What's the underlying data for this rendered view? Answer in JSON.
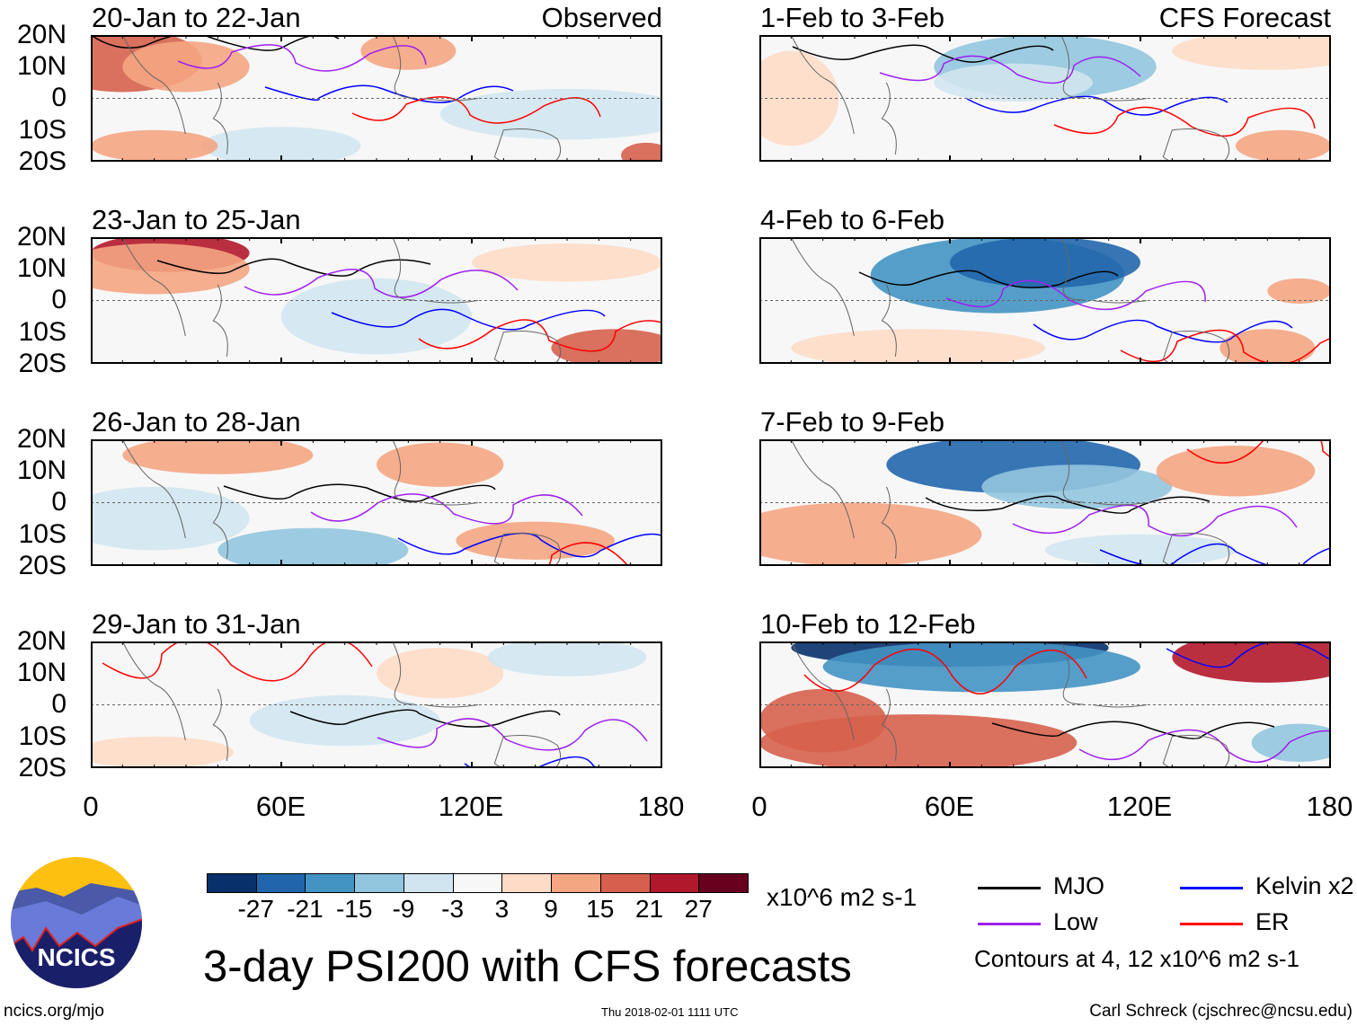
{
  "panels": [
    {
      "title": "20-Jan to 22-Jan",
      "tag": "Observed"
    },
    {
      "title": "1-Feb to 3-Feb",
      "tag": "CFS Forecast"
    },
    {
      "title": "23-Jan to 25-Jan",
      "tag": ""
    },
    {
      "title": "4-Feb to 6-Feb",
      "tag": ""
    },
    {
      "title": "26-Jan to 28-Jan",
      "tag": ""
    },
    {
      "title": "7-Feb to 9-Feb",
      "tag": ""
    },
    {
      "title": "29-Jan to 31-Jan",
      "tag": ""
    },
    {
      "title": "10-Feb to 12-Feb",
      "tag": ""
    }
  ],
  "lat_ticks": [
    "20N",
    "10N",
    "0",
    "10S",
    "20S"
  ],
  "lon_ticks": [
    "0",
    "60E",
    "120E",
    "180"
  ],
  "colorbar": {
    "colors": [
      "#08306b",
      "#2166ac",
      "#4393c3",
      "#92c5de",
      "#d1e5f0",
      "#f7f7f7",
      "#fddbc7",
      "#f4a582",
      "#d6604d",
      "#b2182b",
      "#67001f"
    ],
    "labels": [
      "-27",
      "-21",
      "-15",
      "-9",
      "-3",
      "3",
      "9",
      "15",
      "21",
      "27"
    ],
    "units": "x10^6 m2 s-1"
  },
  "legend": [
    {
      "label": "MJO",
      "color": "#000000"
    },
    {
      "label": "Kelvin x2",
      "color": "#0000ff"
    },
    {
      "label": "Low",
      "color": "#a020f0"
    },
    {
      "label": "ER",
      "color": "#ff0000"
    }
  ],
  "contour_note": "Contours at 4, 12 x10^6 m2 s-1",
  "title": "3-day PSI200 with CFS forecasts",
  "logo_text": "NCICS",
  "footer": {
    "url": "ncics.org/mjo",
    "timestamp": "Thu 2018-02-01 1111 UTC",
    "credit": "Carl Schreck (cjschrec@ncsu.edu)"
  },
  "chart_data": {
    "type": "heatmap",
    "title": "3-day PSI200 with CFS forecasts",
    "variable": "200-hPa streamfunction anomaly",
    "units": "x10^6 m2 s-1",
    "xlim": [
      0,
      180
    ],
    "ylim": [
      -20,
      20
    ],
    "levels": [
      -27,
      -21,
      -15,
      -9,
      -3,
      3,
      9,
      15,
      21,
      27
    ],
    "contour_levels": [
      4,
      12
    ],
    "contour_series": [
      "MJO",
      "Kelvin x2",
      "Low",
      "ER"
    ]
  }
}
